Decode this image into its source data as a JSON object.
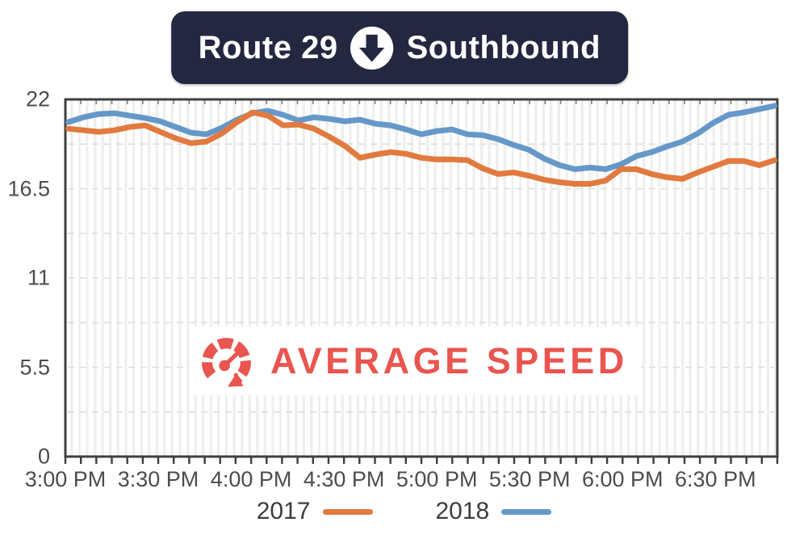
{
  "banner": {
    "route": "Route 29",
    "direction": "Southbound",
    "bg_color": "#232740",
    "text_color": "#ffffff",
    "arrow_icon": "down-arrow-in-circle"
  },
  "watermark": {
    "text": "AVERAGE SPEED",
    "color": "#e9554f",
    "icon": "speedometer-icon"
  },
  "axis_colors": {
    "label_text": "#4c4c4c",
    "plot_border": "#3f3f3f",
    "gridline": "#dddddb",
    "stripe": "#efefed"
  },
  "chart_data": {
    "type": "line",
    "title": "Route 29 Southbound",
    "xlabel": "",
    "ylabel": "",
    "ylim": [
      0,
      22
    ],
    "y_ticks": [
      0,
      5.5,
      11,
      16.5,
      22
    ],
    "y_minor_grid_step": 2.75,
    "grid": "horizontal-dashed, vertical-stripes",
    "legend_position": "bottom",
    "x_tick_labels": [
      "3:00 PM",
      "3:30 PM",
      "4:00 PM",
      "4:30 PM",
      "5:00 PM",
      "5:30 PM",
      "6:00 PM",
      "6:30 PM"
    ],
    "x": [
      "3:00 PM",
      "3:05 PM",
      "3:10 PM",
      "3:15 PM",
      "3:20 PM",
      "3:25 PM",
      "3:30 PM",
      "3:35 PM",
      "3:40 PM",
      "3:45 PM",
      "3:50 PM",
      "3:55 PM",
      "4:00 PM",
      "4:05 PM",
      "4:10 PM",
      "4:15 PM",
      "4:20 PM",
      "4:25 PM",
      "4:30 PM",
      "4:35 PM",
      "4:40 PM",
      "4:45 PM",
      "4:50 PM",
      "4:55 PM",
      "5:00 PM",
      "5:05 PM",
      "5:10 PM",
      "5:15 PM",
      "5:20 PM",
      "5:25 PM",
      "5:30 PM",
      "5:35 PM",
      "5:40 PM",
      "5:45 PM",
      "5:50 PM",
      "5:55 PM",
      "6:00 PM",
      "6:05 PM",
      "6:10 PM",
      "6:15 PM",
      "6:20 PM",
      "6:25 PM",
      "6:30 PM",
      "6:35 PM",
      "6:40 PM",
      "6:45 PM",
      "6:50 PM"
    ],
    "series": [
      {
        "name": "2017",
        "color": "#e27a3f",
        "values": [
          20.2,
          20.1,
          20.0,
          20.1,
          20.3,
          20.4,
          20.0,
          19.6,
          19.3,
          19.4,
          19.9,
          20.6,
          21.2,
          21.0,
          20.4,
          20.45,
          20.2,
          19.7,
          19.15,
          18.4,
          18.6,
          18.75,
          18.65,
          18.4,
          18.3,
          18.3,
          18.25,
          17.75,
          17.4,
          17.5,
          17.3,
          17.05,
          16.9,
          16.8,
          16.8,
          17.0,
          17.7,
          17.7,
          17.4,
          17.2,
          17.1,
          17.5,
          17.85,
          18.2,
          18.2,
          17.95,
          18.25
        ]
      },
      {
        "name": "2018",
        "color": "#6598c9",
        "values": [
          20.6,
          20.9,
          21.1,
          21.15,
          21.0,
          20.85,
          20.65,
          20.3,
          19.95,
          19.85,
          20.25,
          20.75,
          21.15,
          21.3,
          21.05,
          20.7,
          20.9,
          20.8,
          20.65,
          20.75,
          20.5,
          20.4,
          20.15,
          19.85,
          20.05,
          20.15,
          19.85,
          19.8,
          19.55,
          19.2,
          18.9,
          18.35,
          17.95,
          17.7,
          17.8,
          17.7,
          18.0,
          18.5,
          18.75,
          19.1,
          19.4,
          19.9,
          20.55,
          21.05,
          21.2,
          21.4,
          21.6
        ]
      }
    ]
  }
}
